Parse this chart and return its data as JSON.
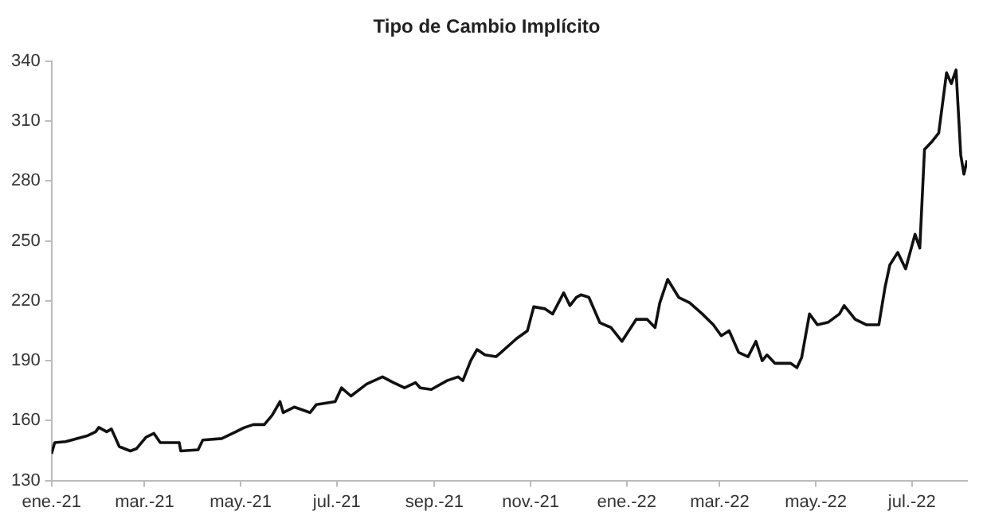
{
  "chart_data": {
    "type": "line",
    "title": "Tipo de Cambio Implícito",
    "x": [
      "2021-01-01",
      "2021-01-03",
      "2021-01-10",
      "2021-01-17",
      "2021-01-24",
      "2021-01-29",
      "2021-01-31",
      "2021-02-05",
      "2021-02-08",
      "2021-02-13",
      "2021-02-20",
      "2021-02-24",
      "2021-03-02",
      "2021-03-07",
      "2021-03-11",
      "2021-03-23",
      "2021-03-24",
      "2021-04-04",
      "2021-04-07",
      "2021-04-19",
      "2021-04-28",
      "2021-05-03",
      "2021-05-09",
      "2021-05-16",
      "2021-05-21",
      "2021-05-26",
      "2021-05-28",
      "2021-06-04",
      "2021-06-14",
      "2021-06-18",
      "2021-06-30",
      "2021-07-04",
      "2021-07-10",
      "2021-07-20",
      "2021-07-30",
      "2021-08-06",
      "2021-08-13",
      "2021-08-20",
      "2021-08-23",
      "2021-08-30",
      "2021-09-09",
      "2021-09-16",
      "2021-09-19",
      "2021-09-24",
      "2021-09-28",
      "2021-10-03",
      "2021-10-10",
      "2021-10-13",
      "2021-10-23",
      "2021-10-30",
      "2021-11-03",
      "2021-11-10",
      "2021-11-15",
      "2021-11-22",
      "2021-11-26",
      "2021-11-30",
      "2021-12-03",
      "2021-12-08",
      "2021-12-15",
      "2021-12-22",
      "2021-12-29",
      "2022-01-07",
      "2022-01-14",
      "2022-01-19",
      "2022-01-22",
      "2022-01-27",
      "2022-02-03",
      "2022-02-10",
      "2022-02-18",
      "2022-02-25",
      "2022-03-02",
      "2022-03-07",
      "2022-03-13",
      "2022-03-19",
      "2022-03-24",
      "2022-03-28",
      "2022-03-31",
      "2022-04-05",
      "2022-04-15",
      "2022-04-19",
      "2022-04-22",
      "2022-04-27",
      "2022-05-02",
      "2022-05-09",
      "2022-05-16",
      "2022-05-19",
      "2022-05-26",
      "2022-06-02",
      "2022-06-10",
      "2022-06-14",
      "2022-06-17",
      "2022-06-22",
      "2022-06-27",
      "2022-07-03",
      "2022-07-06",
      "2022-07-09",
      "2022-07-14",
      "2022-07-18",
      "2022-07-23",
      "2022-07-26",
      "2022-07-29",
      "2022-08-01",
      "2022-08-03",
      "2022-08-05"
    ],
    "series": [
      {
        "color": "#111111",
        "values": [
          143.4,
          149,
          149.5,
          151,
          152.5,
          154.4,
          156.6,
          154.4,
          155.8,
          147,
          144.8,
          146,
          151.7,
          153.6,
          149,
          149,
          144.8,
          145.4,
          150.3,
          151,
          154.4,
          156.4,
          158,
          158,
          162.7,
          169.5,
          164,
          166.8,
          164,
          168,
          169.5,
          176.4,
          172.3,
          178.3,
          181.9,
          179,
          176.4,
          179,
          176.4,
          175.6,
          180,
          181.9,
          180,
          190,
          195.6,
          192.9,
          192,
          194,
          201,
          205,
          217,
          216,
          213.4,
          224,
          217.6,
          221.7,
          223,
          221.7,
          209,
          206.6,
          199.7,
          210.7,
          210.7,
          206.6,
          219,
          230.7,
          221.7,
          219,
          213.4,
          208,
          202.5,
          205,
          194.2,
          192,
          199.7,
          190,
          192.9,
          188.7,
          188.7,
          186.5,
          191.5,
          213.4,
          208,
          209.3,
          213.4,
          217.6,
          210.7,
          208,
          208,
          227,
          238,
          244.2,
          236,
          253.3,
          246.4,
          295.8,
          300,
          304,
          334.2,
          328.7,
          335.6,
          293,
          283.4,
          290.3
        ]
      }
    ],
    "xlim": [
      "2021-01-01",
      "2022-08-05"
    ],
    "xticks": [
      {
        "value": "2021-01-01",
        "label": "ene.-21"
      },
      {
        "value": "2021-03-01",
        "label": "mar.-21"
      },
      {
        "value": "2021-05-01",
        "label": "may.-21"
      },
      {
        "value": "2021-07-01",
        "label": "jul.-21"
      },
      {
        "value": "2021-09-01",
        "label": "sep.-21"
      },
      {
        "value": "2021-11-01",
        "label": "nov.-21"
      },
      {
        "value": "2022-01-01",
        "label": "ene.-22"
      },
      {
        "value": "2022-03-01",
        "label": "mar.-22"
      },
      {
        "value": "2022-05-01",
        "label": "may.-22"
      },
      {
        "value": "2022-07-01",
        "label": "jul.-22"
      }
    ],
    "ylim": [
      130,
      340
    ],
    "yticks": [
      130,
      160,
      190,
      220,
      250,
      280,
      310,
      340
    ],
    "grid": false,
    "legend": false,
    "marker": "none",
    "line_style": "solid"
  }
}
